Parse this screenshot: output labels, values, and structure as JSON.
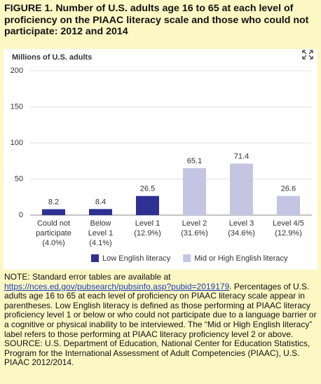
{
  "chart_data": {
    "type": "bar",
    "title": "FIGURE 1. Number of U.S. adults age 16 to 65 at each level of proficiency on the PIAAC literacy scale and those who could not participate: 2012 and 2014",
    "y_label": "Millions of U.S. adults",
    "categories": [
      [
        "Could not",
        "participate",
        "(4.0%)"
      ],
      [
        "Below",
        "Level 1",
        "(4.1%)"
      ],
      [
        "Level 1",
        "(12.9%)"
      ],
      [
        "Level 2",
        "(31.6%)"
      ],
      [
        "Level 3",
        "(34.6%)"
      ],
      [
        "Level 4/5",
        "(12.9%)"
      ]
    ],
    "values": [
      8.2,
      8.4,
      26.5,
      65.1,
      71.4,
      26.6
    ],
    "colors": [
      "#2e3192",
      "#2e3192",
      "#2e3192",
      "#c4c5e2",
      "#c4c5e2",
      "#c4c5e2"
    ],
    "legend": [
      {
        "name": "Low English literacy",
        "color": "#2e3192"
      },
      {
        "name": "Mid or High English literacy",
        "color": "#c4c5e2"
      }
    ],
    "ylim": [
      0,
      200
    ],
    "yticks": [
      0,
      50,
      100,
      150,
      200
    ],
    "grid": true
  },
  "notes": {
    "note_start": "NOTE: Standard error tables are available at ",
    "link": "https://nces.ed.gov/pubsearch/pubsinfo.asp?pubid=2019179",
    "note_end": ". Percentages of U.S. adults age 16 to 65 at each level of proficiency on PIAAC literacy scale appear in parentheses. Low English literacy is defined as those performing at PIAAC literacy proficiency level 1 or below or who could not participate due to a language barrier or a cognitive or physical inability to be interviewed. The “Mid or High English literacy” label refers to those performing at PIAAC literacy proficiency level 2 or above.",
    "source": "SOURCE: U.S. Department of Education, National Center for Education Statistics, Program for the International Assessment of Adult Competencies (PIAAC), U.S. PIAAC 2012/2014."
  }
}
